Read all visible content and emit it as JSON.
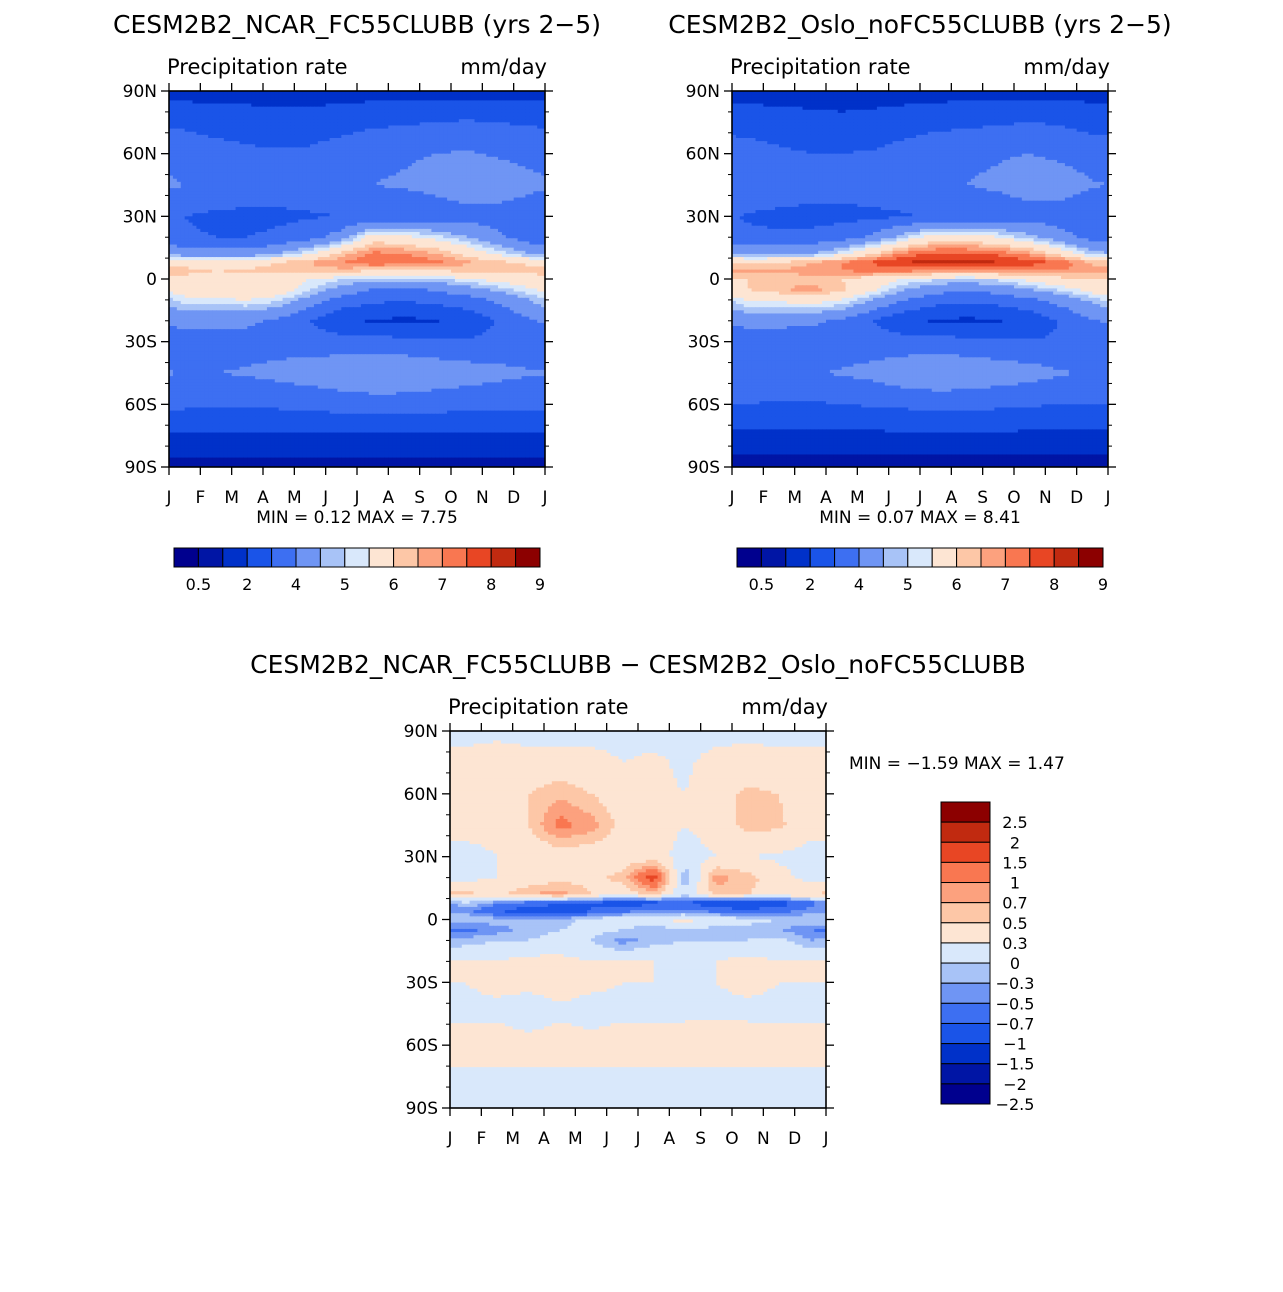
{
  "chart_data": [
    {
      "type": "heatmap",
      "title": "CESM2B2_NCAR_FC55CLUBB (yrs 2-5)",
      "left_label": "Precipitation rate",
      "right_label": "mm/day",
      "x_ticks": [
        "J",
        "F",
        "M",
        "A",
        "M",
        "J",
        "J",
        "A",
        "S",
        "O",
        "N",
        "D",
        "J"
      ],
      "y_ticks": [
        "90N",
        "60N",
        "30N",
        "0",
        "30S",
        "60S",
        "90S"
      ],
      "ylim": [
        -90,
        90
      ],
      "min_label": "MIN =",
      "min_value": "0.12",
      "max_label": "MAX =",
      "max_value": "7.75",
      "colorbar_labels": [
        "0.5",
        "2",
        "4",
        "5",
        "6",
        "7",
        "8",
        "9"
      ],
      "levels": [
        0.2,
        0.5,
        1,
        2,
        3,
        4,
        4.5,
        5,
        6,
        6.5,
        7,
        7.5,
        8,
        9
      ],
      "field": {
        "lat": [
          90,
          75,
          60,
          45,
          30,
          20,
          12,
          8,
          4,
          0,
          -5,
          -10,
          -20,
          -30,
          -45,
          -60,
          -75,
          -90
        ],
        "month": [
          "Jan",
          "Feb",
          "Mar",
          "Apr",
          "May",
          "Jun",
          "Jul",
          "Aug",
          "Sep",
          "Oct",
          "Nov",
          "Dec"
        ],
        "values": [
          [
            0.6,
            0.6,
            0.6,
            0.6,
            0.6,
            0.6,
            0.6,
            0.6,
            0.6,
            0.6,
            0.6,
            0.6
          ],
          [
            1.8,
            1.6,
            1.5,
            1.4,
            1.4,
            1.6,
            1.8,
            1.9,
            2.0,
            2.1,
            2.0,
            1.9
          ],
          [
            2.6,
            2.4,
            2.2,
            2.1,
            2.2,
            2.5,
            2.8,
            2.9,
            3.0,
            3.1,
            2.9,
            2.7
          ],
          [
            3.0,
            2.9,
            2.7,
            2.5,
            2.6,
            2.8,
            3.0,
            3.1,
            3.3,
            3.6,
            3.6,
            3.3
          ],
          [
            2.0,
            1.8,
            1.7,
            1.8,
            1.9,
            2.0,
            2.2,
            2.3,
            2.4,
            2.6,
            2.6,
            2.3
          ],
          [
            2.1,
            2.0,
            2.0,
            2.2,
            2.6,
            3.5,
            5.5,
            5.2,
            4.7,
            4.0,
            3.2,
            2.5
          ],
          [
            3.6,
            3.4,
            3.5,
            4.0,
            5.0,
            6.2,
            7.2,
            7.0,
            6.6,
            5.8,
            4.8,
            4.0
          ],
          [
            5.6,
            5.4,
            5.6,
            6.0,
            6.5,
            7.0,
            7.5,
            7.4,
            7.2,
            6.6,
            6.2,
            5.8
          ],
          [
            6.2,
            6.0,
            6.1,
            6.2,
            6.3,
            6.3,
            6.0,
            5.9,
            6.0,
            6.2,
            6.4,
            6.3
          ],
          [
            5.8,
            5.6,
            5.6,
            5.4,
            5.0,
            4.6,
            4.3,
            4.2,
            4.4,
            4.9,
            5.3,
            5.6
          ],
          [
            5.5,
            5.6,
            5.9,
            5.6,
            4.6,
            3.6,
            3.0,
            2.9,
            3.1,
            3.6,
            4.2,
            4.9
          ],
          [
            4.8,
            4.9,
            5.0,
            4.6,
            3.6,
            2.6,
            2.2,
            2.1,
            2.3,
            2.6,
            3.2,
            4.0
          ],
          [
            3.4,
            3.3,
            3.2,
            2.8,
            2.0,
            1.2,
            0.9,
            0.8,
            0.9,
            1.3,
            2.1,
            2.9
          ],
          [
            2.4,
            2.5,
            2.6,
            2.6,
            2.5,
            2.4,
            2.4,
            2.3,
            2.2,
            2.1,
            2.2,
            2.3
          ],
          [
            3.0,
            3.0,
            3.1,
            3.3,
            3.5,
            3.8,
            4.0,
            3.9,
            3.7,
            3.5,
            3.3,
            3.1
          ],
          [
            2.2,
            2.1,
            2.1,
            2.2,
            2.3,
            2.4,
            2.5,
            2.5,
            2.4,
            2.3,
            2.2,
            2.2
          ],
          [
            0.9,
            0.9,
            0.9,
            0.9,
            0.9,
            0.9,
            0.9,
            0.9,
            0.9,
            0.9,
            0.9,
            0.9
          ],
          [
            0.3,
            0.3,
            0.3,
            0.3,
            0.3,
            0.3,
            0.3,
            0.3,
            0.3,
            0.3,
            0.3,
            0.3
          ]
        ]
      },
      "colors": [
        "#00008e",
        "#0015a5",
        "#0031c9",
        "#1a54e8",
        "#3d6ff2",
        "#6f95f4",
        "#a8c3f7",
        "#d9e8fb",
        "#fde5d3",
        "#fdc7a7",
        "#fca17e",
        "#f97751",
        "#e84624",
        "#c12a10",
        "#8c0000"
      ]
    },
    {
      "type": "heatmap",
      "title": "CESM2B2_Oslo_noFC55CLUBB (yrs 2-5)",
      "left_label": "Precipitation rate",
      "right_label": "mm/day",
      "x_ticks": [
        "J",
        "F",
        "M",
        "A",
        "M",
        "J",
        "J",
        "A",
        "S",
        "O",
        "N",
        "D",
        "J"
      ],
      "y_ticks": [
        "90N",
        "60N",
        "30N",
        "0",
        "30S",
        "60S",
        "90S"
      ],
      "ylim": [
        -90,
        90
      ],
      "min_label": "MIN =",
      "min_value": "0.07",
      "max_label": "MAX =",
      "max_value": "8.41",
      "colorbar_labels": [
        "0.5",
        "2",
        "4",
        "5",
        "6",
        "7",
        "8",
        "9"
      ],
      "levels": [
        0.2,
        0.5,
        1,
        2,
        3,
        4,
        4.5,
        5,
        6,
        6.5,
        7,
        7.5,
        8,
        9
      ],
      "field": {
        "lat": [
          90,
          75,
          60,
          45,
          30,
          20,
          12,
          8,
          4,
          0,
          -5,
          -10,
          -20,
          -30,
          -45,
          -60,
          -75,
          -90
        ],
        "month": [
          "Jan",
          "Feb",
          "Mar",
          "Apr",
          "May",
          "Jun",
          "Jul",
          "Aug",
          "Sep",
          "Oct",
          "Nov",
          "Dec"
        ],
        "values": [
          [
            0.6,
            0.6,
            0.6,
            0.6,
            0.6,
            0.6,
            0.6,
            0.6,
            0.6,
            0.6,
            0.6,
            0.6
          ],
          [
            1.6,
            1.4,
            1.3,
            1.2,
            1.3,
            1.5,
            1.7,
            1.8,
            1.9,
            2.0,
            1.9,
            1.7
          ],
          [
            2.4,
            2.2,
            2.0,
            2.0,
            2.1,
            2.4,
            2.7,
            2.8,
            2.9,
            3.0,
            2.8,
            2.5
          ],
          [
            2.9,
            2.8,
            2.6,
            2.4,
            2.5,
            2.7,
            2.9,
            3.0,
            3.2,
            3.5,
            3.5,
            3.1
          ],
          [
            1.9,
            1.7,
            1.6,
            1.7,
            1.8,
            1.9,
            2.1,
            2.2,
            2.3,
            2.5,
            2.5,
            2.2
          ],
          [
            2.2,
            2.2,
            2.3,
            2.6,
            3.2,
            4.4,
            5.6,
            5.5,
            5.0,
            4.2,
            3.4,
            2.6
          ],
          [
            3.8,
            3.8,
            4.0,
            4.8,
            6.0,
            7.2,
            7.6,
            7.6,
            7.4,
            6.8,
            5.6,
            4.4
          ],
          [
            5.8,
            6.0,
            6.4,
            7.0,
            7.6,
            8.0,
            8.2,
            8.2,
            8.0,
            7.8,
            7.4,
            6.4
          ],
          [
            6.6,
            6.6,
            6.8,
            7.0,
            7.2,
            7.2,
            7.0,
            7.0,
            7.0,
            7.0,
            7.0,
            6.8
          ],
          [
            6.0,
            6.2,
            6.2,
            6.0,
            5.6,
            5.0,
            4.6,
            4.5,
            4.7,
            5.3,
            5.8,
            6.0
          ],
          [
            6.0,
            6.4,
            6.8,
            6.2,
            5.2,
            4.0,
            3.4,
            3.2,
            3.4,
            4.0,
            4.6,
            5.4
          ],
          [
            5.0,
            5.2,
            5.4,
            5.0,
            4.0,
            3.0,
            2.4,
            2.2,
            2.4,
            2.8,
            3.4,
            4.2
          ],
          [
            3.4,
            3.3,
            3.2,
            2.8,
            2.0,
            1.2,
            0.9,
            0.8,
            0.9,
            1.3,
            2.1,
            2.9
          ],
          [
            2.3,
            2.4,
            2.5,
            2.5,
            2.5,
            2.4,
            2.4,
            2.3,
            2.2,
            2.1,
            2.1,
            2.2
          ],
          [
            2.8,
            2.8,
            2.9,
            3.1,
            3.3,
            3.7,
            3.9,
            3.8,
            3.6,
            3.4,
            3.1,
            2.9
          ],
          [
            2.0,
            1.9,
            1.9,
            2.0,
            2.1,
            2.2,
            2.3,
            2.3,
            2.2,
            2.1,
            2.0,
            2.0
          ],
          [
            0.8,
            0.8,
            0.8,
            0.8,
            0.8,
            0.8,
            0.8,
            0.8,
            0.8,
            0.8,
            0.8,
            0.8
          ],
          [
            0.3,
            0.3,
            0.3,
            0.3,
            0.3,
            0.3,
            0.3,
            0.3,
            0.3,
            0.3,
            0.3,
            0.3
          ]
        ]
      },
      "colors": [
        "#00008e",
        "#0015a5",
        "#0031c9",
        "#1a54e8",
        "#3d6ff2",
        "#6f95f4",
        "#a8c3f7",
        "#d9e8fb",
        "#fde5d3",
        "#fdc7a7",
        "#fca17e",
        "#f97751",
        "#e84624",
        "#c12a10",
        "#8c0000"
      ]
    },
    {
      "type": "heatmap",
      "title": "CESM2B2_NCAR_FC55CLUBB - CESM2B2_Oslo_noFC55CLUBB",
      "left_label": "Precipitation rate",
      "right_label": "mm/day",
      "x_ticks": [
        "J",
        "F",
        "M",
        "A",
        "M",
        "J",
        "J",
        "A",
        "S",
        "O",
        "N",
        "D",
        "J"
      ],
      "y_ticks": [
        "90N",
        "60N",
        "30N",
        "0",
        "30S",
        "60S",
        "90S"
      ],
      "ylim": [
        -90,
        90
      ],
      "min_label": "MIN =",
      "min_value": "-1.59",
      "max_label": "MAX =",
      "max_value": "1.47",
      "colorbar_labels": [
        "2.5",
        "2",
        "1.5",
        "1",
        "0.7",
        "0.5",
        "0.3",
        "0",
        "-0.3",
        "-0.5",
        "-0.7",
        "-1",
        "-1.5",
        "-2",
        "-2.5"
      ],
      "levels": [
        -2.5,
        -2,
        -1.5,
        -1,
        -0.7,
        -0.5,
        -0.3,
        0,
        0.3,
        0.5,
        0.7,
        1,
        1.5,
        2,
        2.5
      ],
      "field": {
        "lat": [
          90,
          75,
          60,
          45,
          30,
          20,
          12,
          8,
          4,
          0,
          -5,
          -10,
          -20,
          -30,
          -45,
          -60,
          -75,
          -90
        ],
        "month": [
          "Jan",
          "Feb",
          "Mar",
          "Apr",
          "May",
          "Jun",
          "Jul",
          "Aug",
          "Sep",
          "Oct",
          "Nov",
          "Dec"
        ],
        "values": [
          [
            -0.1,
            -0.1,
            -0.1,
            -0.1,
            -0.1,
            -0.1,
            -0.1,
            -0.1,
            -0.1,
            -0.1,
            -0.1,
            -0.1
          ],
          [
            0.1,
            0.2,
            0.1,
            0.1,
            0.1,
            0.0,
            0.05,
            -0.05,
            0.1,
            0.15,
            0.1,
            0.1
          ],
          [
            0.1,
            0.2,
            0.3,
            0.45,
            0.3,
            0.1,
            0.05,
            0.0,
            0.2,
            0.35,
            0.3,
            0.1
          ],
          [
            0.1,
            0.1,
            0.3,
            0.8,
            0.6,
            0.2,
            0.1,
            0.0,
            0.1,
            0.4,
            0.35,
            0.1
          ],
          [
            -0.1,
            0.0,
            0.0,
            0.1,
            0.1,
            0.1,
            0.1,
            -0.1,
            0.0,
            0.0,
            -0.05,
            -0.1
          ],
          [
            -0.1,
            0.0,
            0.1,
            0.2,
            0.2,
            0.4,
            1.2,
            -0.5,
            0.6,
            0.4,
            0.1,
            -0.1
          ],
          [
            0.4,
            0.2,
            0.5,
            0.6,
            0.3,
            0.1,
            0.4,
            -0.2,
            0.4,
            0.3,
            0.2,
            0.3
          ],
          [
            -0.3,
            -0.6,
            -0.8,
            -0.9,
            -1.0,
            -1.2,
            -1.1,
            -1.0,
            -1.3,
            -1.4,
            -1.2,
            -0.8
          ],
          [
            -0.6,
            -1.0,
            -1.2,
            -1.4,
            -1.0,
            -0.8,
            -0.6,
            -0.6,
            -0.8,
            -0.9,
            -0.8,
            -0.6
          ],
          [
            -0.3,
            -0.4,
            -0.5,
            -0.4,
            -0.2,
            -0.1,
            0.0,
            0.1,
            -0.1,
            -0.2,
            -0.3,
            -0.3
          ],
          [
            -0.8,
            -0.6,
            -0.4,
            -0.3,
            -0.2,
            -0.3,
            -0.5,
            -0.3,
            -0.4,
            -0.4,
            -0.5,
            -0.7
          ],
          [
            -0.4,
            -0.3,
            -0.3,
            -0.2,
            -0.3,
            -0.6,
            -0.4,
            -0.3,
            -0.3,
            -0.3,
            -0.2,
            -0.5
          ],
          [
            0.0,
            0.0,
            0.1,
            0.1,
            0.0,
            0.0,
            0.0,
            0.0,
            0.0,
            0.1,
            0.0,
            0.0
          ],
          [
            0.0,
            0.05,
            0.1,
            0.1,
            0.05,
            0.0,
            0.0,
            -0.05,
            0.0,
            0.05,
            0.0,
            0.0
          ],
          [
            -0.05,
            -0.05,
            -0.2,
            -0.05,
            -0.1,
            -0.05,
            -0.05,
            -0.05,
            -0.05,
            -0.05,
            -0.05,
            -0.05
          ],
          [
            0.1,
            0.15,
            0.15,
            0.15,
            0.1,
            0.15,
            0.1,
            0.15,
            0.15,
            0.15,
            0.1,
            0.1
          ],
          [
            -0.05,
            -0.05,
            -0.05,
            -0.05,
            -0.05,
            -0.05,
            -0.05,
            -0.05,
            -0.05,
            -0.05,
            -0.05,
            -0.05
          ],
          [
            0.0,
            0.0,
            0.0,
            0.0,
            0.0,
            0.0,
            0.0,
            0.0,
            0.0,
            0.0,
            0.0,
            0.0
          ]
        ]
      },
      "colors": [
        "#00008e",
        "#0015a5",
        "#0031c9",
        "#1a54e8",
        "#3d6ff2",
        "#6f95f4",
        "#a8c3f7",
        "#d9e8fb",
        "#fde5d3",
        "#fdc7a7",
        "#fca17e",
        "#f97751",
        "#e84624",
        "#c12a10",
        "#8c0000"
      ]
    }
  ]
}
